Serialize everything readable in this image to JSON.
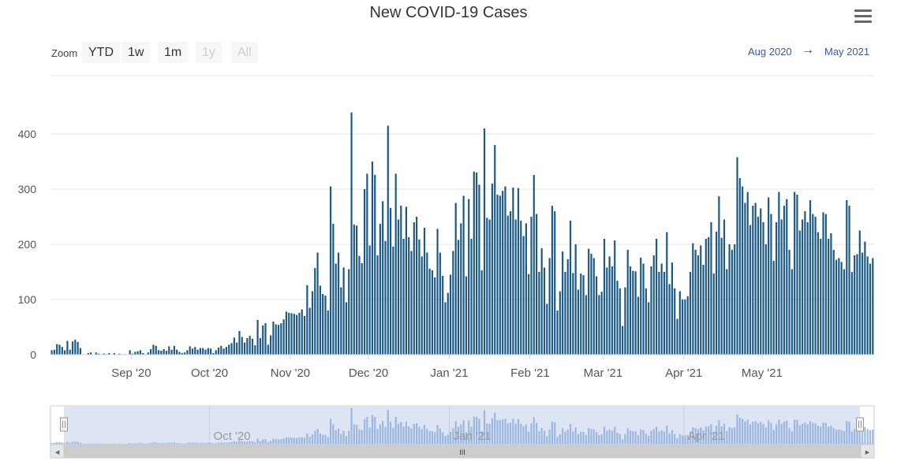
{
  "chart_data": {
    "type": "bar",
    "title": "New COVID-19 Cases",
    "xlabel": "",
    "ylabel": "",
    "ylim": [
      0,
      440
    ],
    "yticks": [
      0,
      100,
      200,
      300,
      400
    ],
    "start_date": "2020-08-01",
    "x_tick_labels": [
      {
        "date": "2020-09-01",
        "label": "Sep '20"
      },
      {
        "date": "2020-10-01",
        "label": "Oct '20"
      },
      {
        "date": "2020-11-01",
        "label": "Nov '20"
      },
      {
        "date": "2020-12-01",
        "label": "Dec '20"
      },
      {
        "date": "2021-01-01",
        "label": "Jan '21"
      },
      {
        "date": "2021-02-01",
        "label": "Feb '21"
      },
      {
        "date": "2021-03-01",
        "label": "Mar '21"
      },
      {
        "date": "2021-04-01",
        "label": "Apr '21"
      },
      {
        "date": "2021-05-01",
        "label": "May '21"
      }
    ],
    "series": [
      {
        "name": "New Cases",
        "color": "#1c5a86",
        "values": [
          8,
          9,
          19,
          18,
          14,
          8,
          25,
          9,
          24,
          27,
          23,
          12,
          0,
          0,
          3,
          4,
          0,
          4,
          2,
          0,
          2,
          1,
          3,
          0,
          3,
          0,
          2,
          0,
          1,
          0,
          8,
          2,
          5,
          6,
          8,
          3,
          1,
          4,
          10,
          18,
          16,
          8,
          7,
          10,
          7,
          15,
          9,
          16,
          9,
          5,
          3,
          4,
          8,
          15,
          11,
          14,
          9,
          12,
          12,
          9,
          12,
          11,
          3,
          8,
          13,
          16,
          11,
          14,
          18,
          21,
          31,
          22,
          43,
          32,
          22,
          30,
          34,
          29,
          17,
          63,
          30,
          53,
          57,
          18,
          35,
          60,
          55,
          54,
          57,
          64,
          78,
          76,
          75,
          74,
          72,
          76,
          82,
          70,
          126,
          85,
          115,
          157,
          185,
          125,
          110,
          107,
          80,
          305,
          237,
          165,
          185,
          122,
          158,
          95,
          155,
          439,
          236,
          234,
          179,
          166,
          300,
          328,
          198,
          350,
          326,
          180,
          237,
          278,
          206,
          415,
          266,
          196,
          328,
          245,
          270,
          210,
          268,
          213,
          188,
          240,
          250,
          209,
          178,
          230,
          185,
          156,
          153,
          140,
          228,
          185,
          143,
          95,
          112,
          145,
          188,
          275,
          208,
          238,
          288,
          142,
          282,
          210,
          332,
          330,
          308,
          153,
          410,
          248,
          245,
          310,
          380,
          290,
          288,
          297,
          305,
          252,
          260,
          303,
          245,
          302,
          243,
          215,
          238,
          146,
          250,
          326,
          255,
          150,
          193,
          158,
          92,
          175,
          270,
          260,
          80,
          115,
          187,
          150,
          173,
          243,
          148,
          200,
          118,
          147,
          144,
          108,
          192,
          183,
          175,
          142,
          108,
          114,
          210,
          158,
          178,
          160,
          207,
          134,
          120,
          52,
          122,
          190,
          160,
          152,
          151,
          105,
          176,
          165,
          120,
          95,
          160,
          180,
          210,
          150,
          165,
          150,
          222,
          128,
          167,
          120,
          65,
          115,
          100,
          100,
          106,
          150,
          202,
          190,
          180,
          198,
          163,
          210,
          213,
          240,
          147,
          223,
          287,
          212,
          245,
          155,
          200,
          190,
          200,
          358,
          320,
          305,
          275,
          295,
          235,
          270,
          275,
          250,
          265,
          240,
          200,
          285,
          255,
          170,
          240,
          295,
          245,
          270,
          282,
          190,
          155,
          295,
          290,
          225,
          245,
          260,
          240,
          280,
          255,
          250,
          222,
          210,
          258,
          255,
          210,
          220,
          190,
          172,
          175,
          168,
          155,
          280,
          270,
          150,
          180,
          182,
          225,
          185,
          205,
          178,
          165,
          175
        ]
      }
    ],
    "navigator_ticks": [
      {
        "date": "2020-10-01",
        "label": "Oct '20"
      },
      {
        "date": "2021-01-01",
        "label": "Jan '21"
      },
      {
        "date": "2021-04-01",
        "label": "Apr '21"
      }
    ]
  },
  "range_selector": {
    "zoom_label": "Zoom",
    "buttons": [
      "YTD",
      "1w",
      "1m",
      "1y",
      "All"
    ],
    "disabled": [
      "1y",
      "All"
    ],
    "from": "Aug 2020",
    "arrow": "→",
    "to": "May 2021"
  },
  "scrollbar": {
    "left_arrow": "◂",
    "right_arrow": "▸",
    "grip": "III"
  },
  "colors": {
    "bar": "#1c5a86",
    "navigator_fill": "#8fafdc",
    "navigator_mask": "#dde5f5",
    "grid": "#e6e6e6"
  }
}
